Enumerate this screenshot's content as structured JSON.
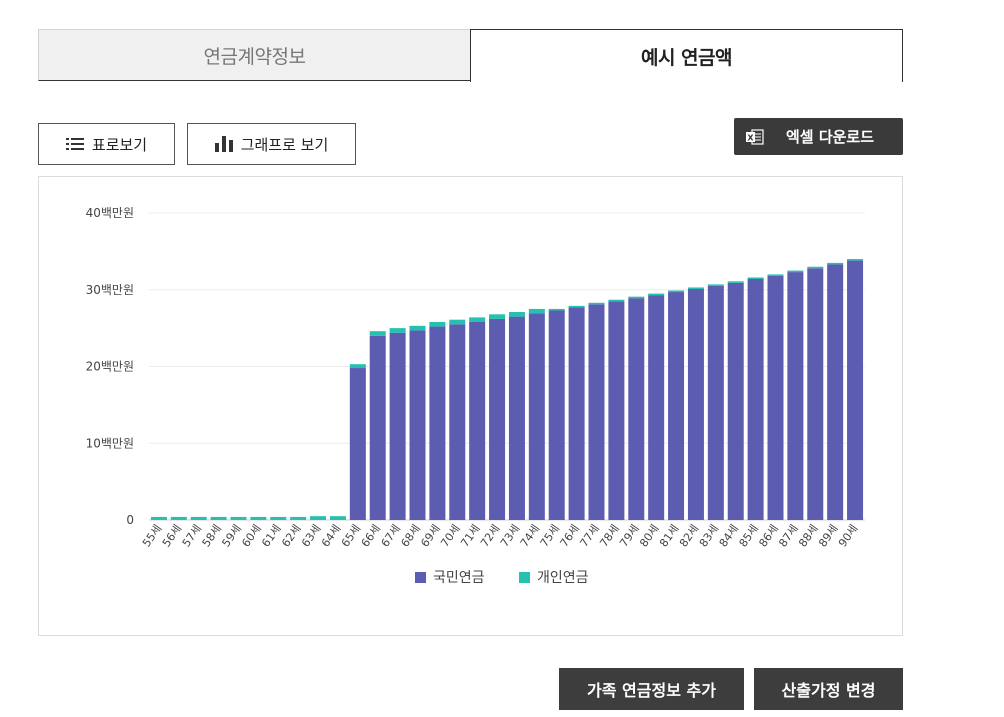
{
  "tabs": [
    {
      "label": "연금계약정보",
      "active": false
    },
    {
      "label": "예시 연금액",
      "active": true
    }
  ],
  "toolbar": {
    "table_view_label": "표로보기",
    "table_view_icon": "list-icon",
    "graph_view_label": "그래프로 보기",
    "graph_view_icon": "bar-chart-icon",
    "excel_label": "엑셀 다운로드",
    "excel_icon": "excel-icon"
  },
  "chart_data": {
    "type": "bar",
    "stacked": true,
    "categories": [
      "55세",
      "56세",
      "57세",
      "58세",
      "59세",
      "60세",
      "61세",
      "62세",
      "63세",
      "64세",
      "65세",
      "66세",
      "67세",
      "68세",
      "69세",
      "70세",
      "71세",
      "72세",
      "73세",
      "74세",
      "75세",
      "76세",
      "77세",
      "78세",
      "79세",
      "80세",
      "81세",
      "82세",
      "83세",
      "84세",
      "85세",
      "86세",
      "87세",
      "88세",
      "89세",
      "90세"
    ],
    "series": [
      {
        "name": "국민연금",
        "color": "#5c5cb0",
        "values": [
          0,
          0,
          0,
          0,
          0,
          0,
          0,
          0,
          0,
          0,
          19.8,
          24.0,
          24.4,
          24.7,
          25.2,
          25.5,
          25.8,
          26.2,
          26.5,
          26.9,
          27.3,
          27.7,
          28.1,
          28.5,
          28.9,
          29.3,
          29.7,
          30.1,
          30.5,
          30.9,
          31.4,
          31.8,
          32.3,
          32.8,
          33.3,
          33.8
        ]
      },
      {
        "name": "개인연금",
        "color": "#26c0b0",
        "values": [
          0.4,
          0.4,
          0.4,
          0.4,
          0.4,
          0.4,
          0.4,
          0.4,
          0.5,
          0.5,
          0.5,
          0.6,
          0.6,
          0.6,
          0.6,
          0.6,
          0.6,
          0.6,
          0.6,
          0.6,
          0.2,
          0.2,
          0.2,
          0.2,
          0.2,
          0.2,
          0.2,
          0.2,
          0.2,
          0.2,
          0.2,
          0.2,
          0.2,
          0.2,
          0.2,
          0.2
        ]
      }
    ],
    "y_ticks": [
      {
        "value": 0,
        "label": "0"
      },
      {
        "value": 10,
        "label": "10백만원"
      },
      {
        "value": 20,
        "label": "20백만원"
      },
      {
        "value": 30,
        "label": "30백만원"
      },
      {
        "value": 40,
        "label": "40백만원"
      }
    ],
    "ylim": [
      0,
      40
    ],
    "grid": true,
    "legend_position": "bottom-center"
  },
  "footer": {
    "family_button_label": "가족 연금정보 추가",
    "assumption_button_label": "산출가정 변경"
  }
}
